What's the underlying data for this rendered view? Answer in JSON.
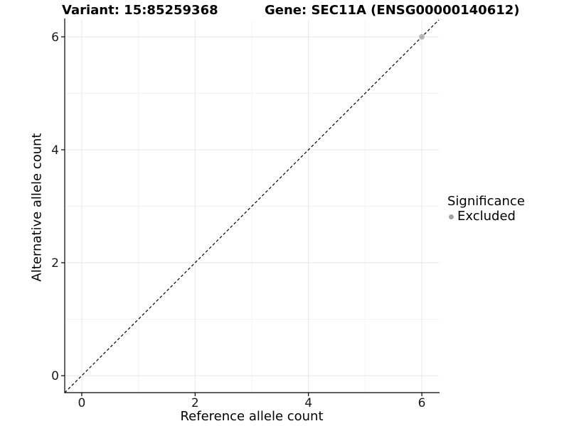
{
  "header": {
    "variant_title": "Variant: 15:85259368",
    "gene_title": "Gene: SEC11A (ENSG00000140612)"
  },
  "legend": {
    "title": "Significance",
    "items": [
      {
        "label": "Excluded",
        "color": "#a2a2a2"
      }
    ],
    "position": "right"
  },
  "chart_data": {
    "type": "scatter",
    "title": "",
    "xlabel": "Reference allele count",
    "ylabel": "Alternative allele count",
    "xlim": [
      -0.3,
      6.3
    ],
    "ylim": [
      -0.3,
      6.3
    ],
    "x_ticks": [
      0,
      2,
      4,
      6
    ],
    "y_ticks": [
      0,
      2,
      4,
      6
    ],
    "x_minor_ticks": [
      1,
      3,
      5
    ],
    "y_minor_ticks": [
      1,
      3,
      5
    ],
    "grid": "major+minor",
    "reference_line": {
      "type": "identity",
      "from": [
        -0.3,
        -0.3
      ],
      "to": [
        6.3,
        6.3
      ],
      "style": "dashed",
      "color": "#000000"
    },
    "series": [
      {
        "name": "Excluded",
        "color": "#b2b2b2",
        "points": [
          {
            "x": 6,
            "y": 6
          }
        ]
      }
    ],
    "legend_position": "right"
  },
  "colors": {
    "background": "#ffffff",
    "axis_line": "#000000",
    "tick_label": "#1a1a1a",
    "major_grid": "#e7e7e7",
    "minor_grid": "#f3f3f3",
    "excluded_point": "#b2b2b2"
  }
}
